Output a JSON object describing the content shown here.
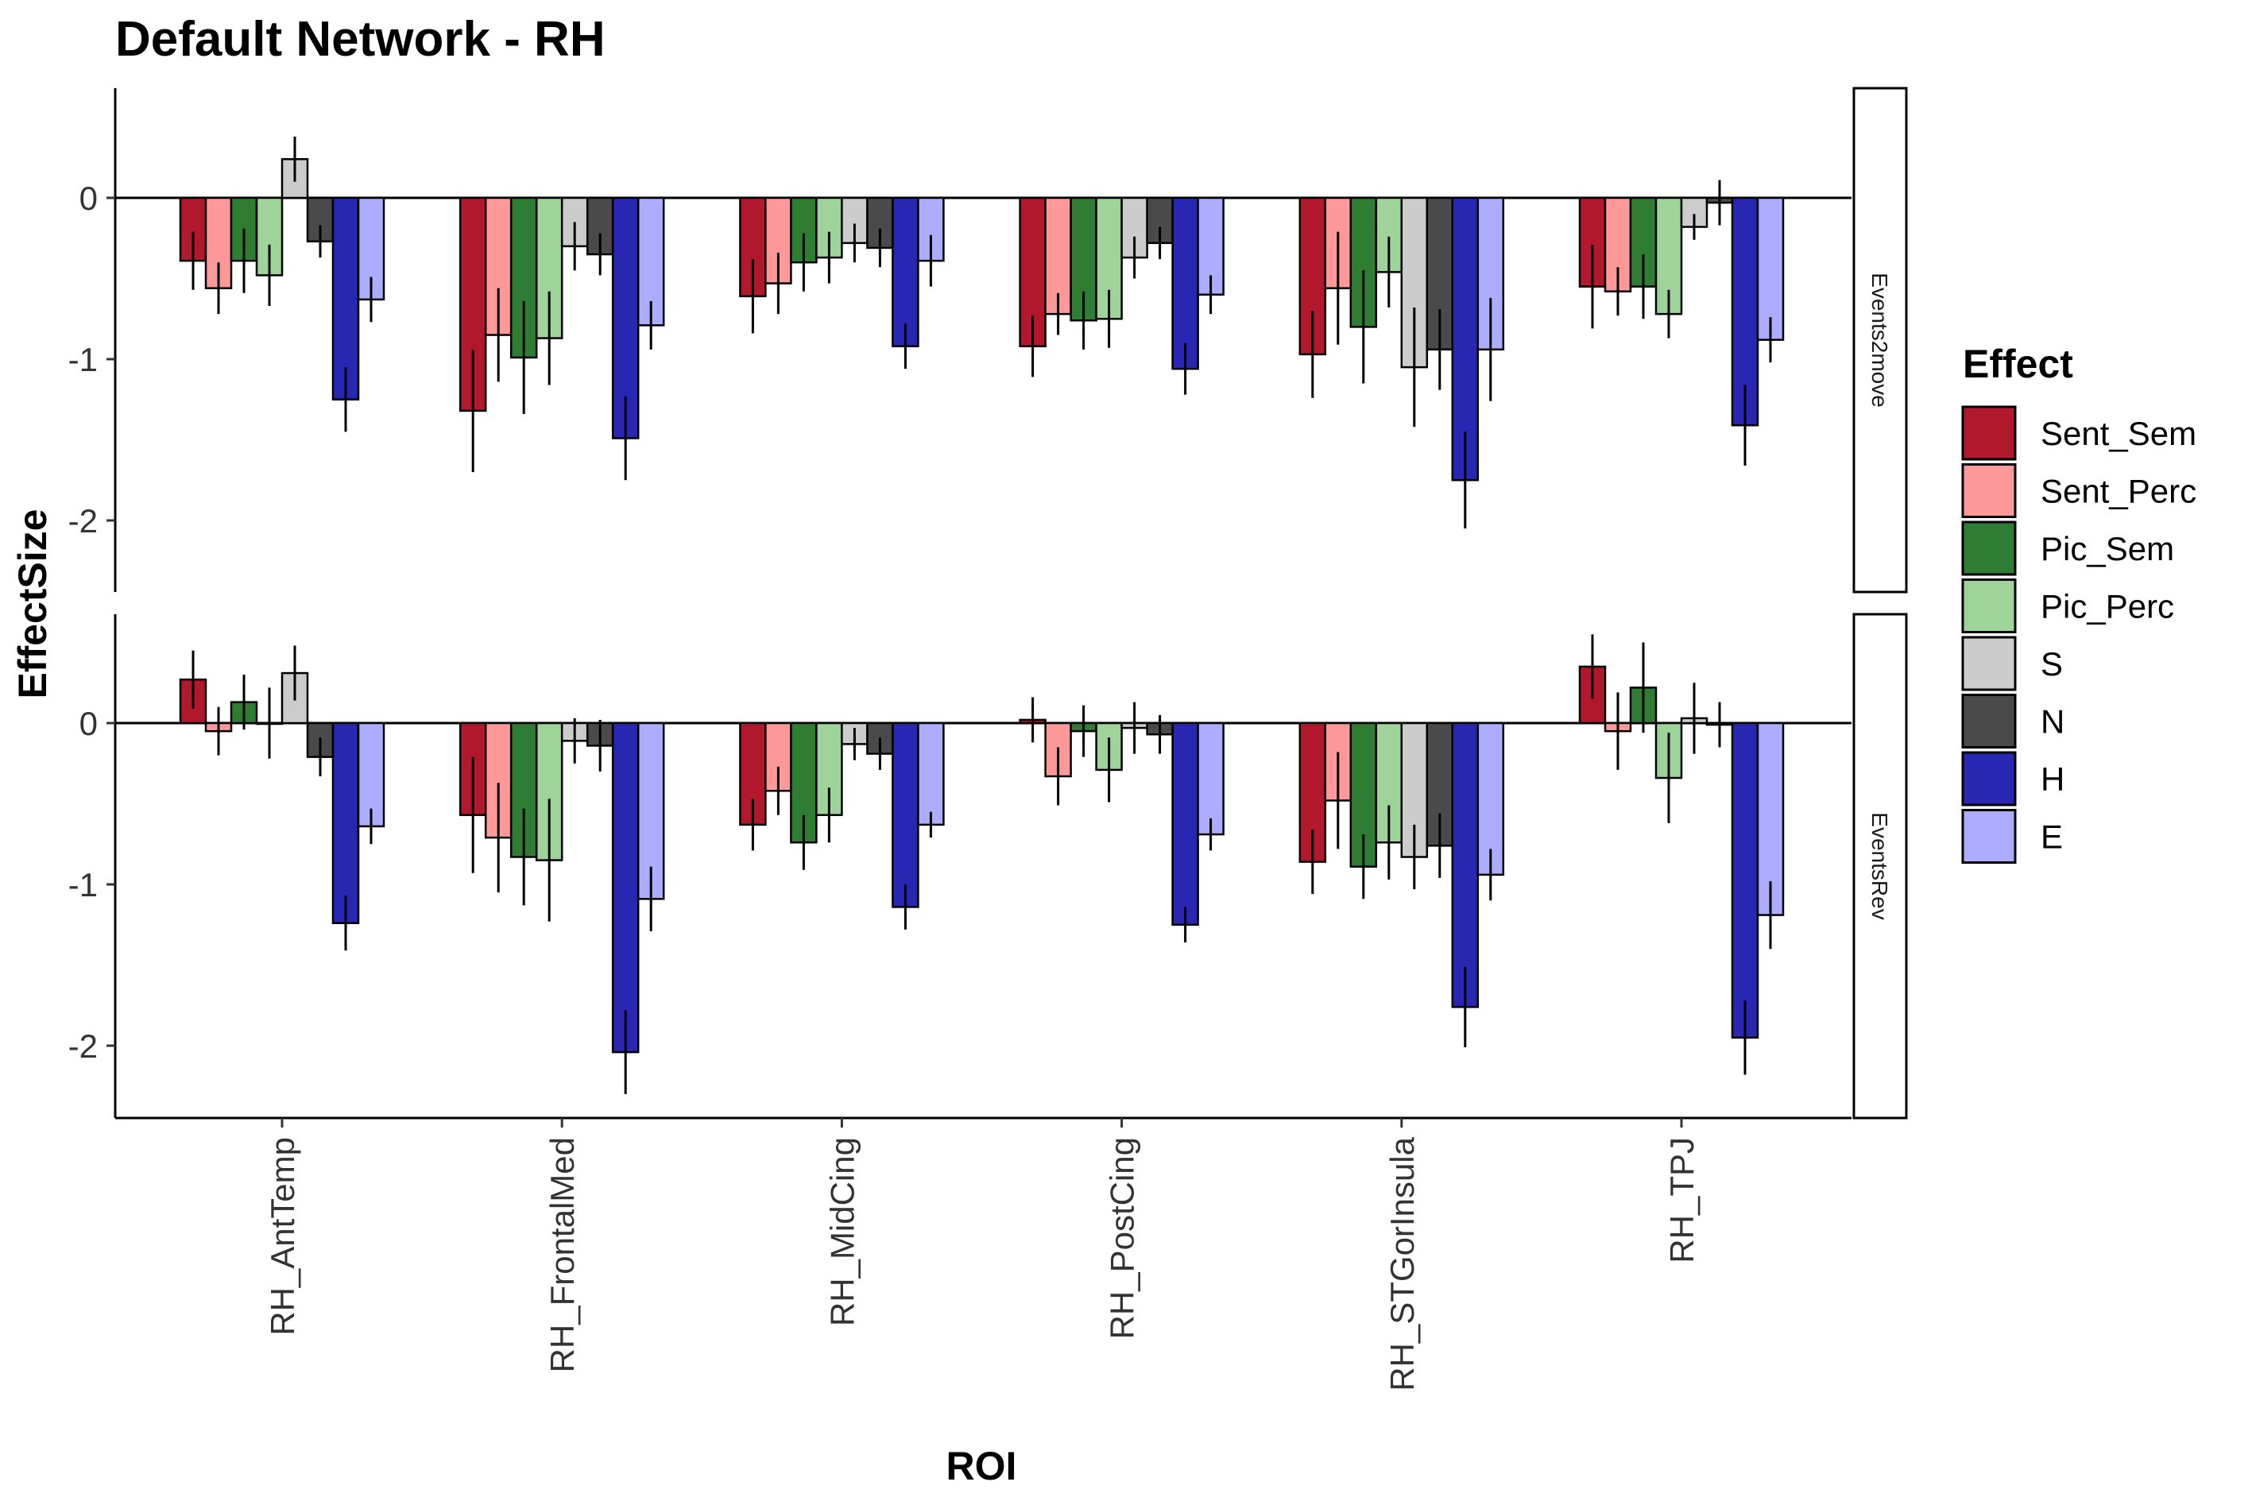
{
  "chart_data": {
    "type": "bar",
    "title": "Default Network - RH",
    "xlabel": "ROI",
    "ylabel": "EffectSize",
    "legend_title": "Effect",
    "legend_position": "right",
    "grid": false,
    "ylim": [
      -2.42,
      0.68
    ],
    "yticks": [
      0,
      -1,
      -2
    ],
    "categories": [
      "RH_AntTemp",
      "RH_FrontalMed",
      "RH_MidCing",
      "RH_PostCing",
      "RH_STGorInsula",
      "RH_TPJ"
    ],
    "effects": [
      {
        "name": "Sent_Sem",
        "color": "#B2182B"
      },
      {
        "name": "Sent_Perc",
        "color": "#FF9999"
      },
      {
        "name": "Pic_Sem",
        "color": "#2E7D32"
      },
      {
        "name": "Pic_Perc",
        "color": "#9ED49A"
      },
      {
        "name": "S",
        "color": "#CCCCCC"
      },
      {
        "name": "N",
        "color": "#4A4A4A"
      },
      {
        "name": "H",
        "color": "#2727B3"
      },
      {
        "name": "E",
        "color": "#ADADFF"
      }
    ],
    "panels": [
      {
        "strip": "Events2move",
        "values": [
          [
            -0.39,
            -0.56,
            -0.39,
            -0.48,
            0.24,
            -0.27,
            -1.25,
            -0.63
          ],
          [
            -1.32,
            -0.85,
            -0.99,
            -0.87,
            -0.3,
            -0.35,
            -1.49,
            -0.79
          ],
          [
            -0.61,
            -0.53,
            -0.4,
            -0.37,
            -0.28,
            -0.31,
            -0.92,
            -0.39
          ],
          [
            -0.92,
            -0.72,
            -0.76,
            -0.75,
            -0.37,
            -0.28,
            -1.06,
            -0.6
          ],
          [
            -0.97,
            -0.56,
            -0.8,
            -0.46,
            -1.05,
            -0.94,
            -1.75,
            -0.94
          ],
          [
            -0.55,
            -0.58,
            -0.55,
            -0.72,
            -0.18,
            -0.03,
            -1.41,
            -0.88
          ]
        ],
        "errors": [
          [
            0.18,
            0.16,
            0.2,
            0.19,
            0.14,
            0.1,
            0.2,
            0.14
          ],
          [
            0.38,
            0.29,
            0.35,
            0.29,
            0.15,
            0.13,
            0.26,
            0.15
          ],
          [
            0.23,
            0.19,
            0.18,
            0.16,
            0.12,
            0.12,
            0.14,
            0.16
          ],
          [
            0.19,
            0.13,
            0.18,
            0.18,
            0.13,
            0.1,
            0.16,
            0.12
          ],
          [
            0.27,
            0.35,
            0.35,
            0.22,
            0.37,
            0.25,
            0.3,
            0.32
          ],
          [
            0.26,
            0.15,
            0.2,
            0.15,
            0.08,
            0.14,
            0.25,
            0.14
          ]
        ]
      },
      {
        "strip": "EventsRev",
        "values": [
          [
            0.27,
            -0.05,
            0.13,
            0.0,
            0.31,
            -0.21,
            -1.24,
            -0.64
          ],
          [
            -0.57,
            -0.71,
            -0.83,
            -0.85,
            -0.11,
            -0.14,
            -2.04,
            -1.09
          ],
          [
            -0.63,
            -0.42,
            -0.74,
            -0.57,
            -0.13,
            -0.19,
            -1.14,
            -0.63
          ],
          [
            0.02,
            -0.33,
            -0.05,
            -0.29,
            -0.03,
            -0.07,
            -1.25,
            -0.69
          ],
          [
            -0.86,
            -0.48,
            -0.89,
            -0.74,
            -0.83,
            -0.76,
            -1.76,
            -0.94
          ],
          [
            0.35,
            -0.05,
            0.22,
            -0.34,
            0.03,
            -0.01,
            -1.95,
            -1.19
          ]
        ],
        "errors": [
          [
            0.18,
            0.15,
            0.17,
            0.22,
            0.17,
            0.12,
            0.17,
            0.11
          ],
          [
            0.36,
            0.34,
            0.3,
            0.38,
            0.14,
            0.16,
            0.26,
            0.2
          ],
          [
            0.16,
            0.15,
            0.17,
            0.17,
            0.1,
            0.1,
            0.14,
            0.08
          ],
          [
            0.14,
            0.18,
            0.16,
            0.2,
            0.16,
            0.12,
            0.11,
            0.1
          ],
          [
            0.2,
            0.3,
            0.2,
            0.23,
            0.2,
            0.2,
            0.25,
            0.16
          ],
          [
            0.2,
            0.24,
            0.28,
            0.28,
            0.22,
            0.14,
            0.23,
            0.21
          ]
        ]
      }
    ]
  }
}
